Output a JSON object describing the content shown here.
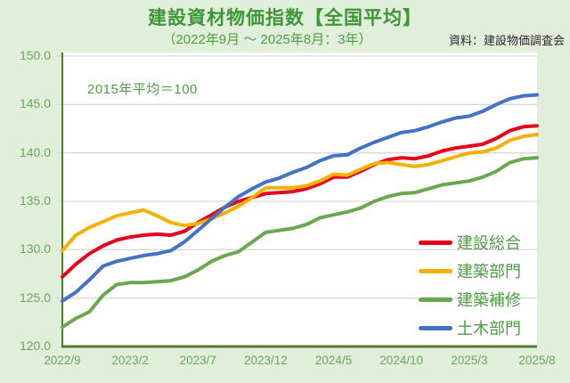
{
  "header": {
    "title": "建設資材物価指数【全国平均】",
    "subtitle": "（2022年9月 ～ 2025年8月：3年）",
    "source": "資料：建設物価調査会"
  },
  "chart": {
    "annotation": "2015年平均＝100"
  },
  "chart_data": {
    "type": "line",
    "title": "建設資材物価指数【全国平均】",
    "subtitle": "（2022年9月 ～ 2025年8月：3年）",
    "annotation": "2015年平均＝100",
    "ylim": [
      120,
      150
    ],
    "y_tick_labels": [
      "150.0",
      "145.0",
      "140.0",
      "135.0",
      "130.0",
      "125.0",
      "120.0"
    ],
    "x_tick_labels": [
      "2022/9",
      "2023/2",
      "2023/7",
      "2023/12",
      "2024/5",
      "2024/10",
      "2025/3",
      "2025/8"
    ],
    "grid": true,
    "legend_position": "inside-right-bottom",
    "categories": [
      "2022/9",
      "2022/10",
      "2022/11",
      "2022/12",
      "2023/1",
      "2023/2",
      "2023/3",
      "2023/4",
      "2023/5",
      "2023/6",
      "2023/7",
      "2023/8",
      "2023/9",
      "2023/10",
      "2023/11",
      "2023/12",
      "2024/1",
      "2024/2",
      "2024/3",
      "2024/4",
      "2024/5",
      "2024/6",
      "2024/7",
      "2024/8",
      "2024/9",
      "2024/10",
      "2024/11",
      "2024/12",
      "2025/1",
      "2025/2",
      "2025/3",
      "2025/4",
      "2025/5",
      "2025/6",
      "2025/7",
      "2025/8"
    ],
    "series": [
      {
        "name": "建設総合",
        "color": "#e60019",
        "values": [
          127.2,
          128.5,
          129.6,
          130.4,
          131.0,
          131.3,
          131.5,
          131.6,
          131.5,
          131.9,
          132.8,
          133.6,
          134.4,
          135.0,
          135.4,
          135.8,
          135.9,
          136.0,
          136.3,
          136.8,
          137.5,
          137.5,
          138.1,
          138.8,
          139.3,
          139.5,
          139.4,
          139.7,
          140.2,
          140.5,
          140.7,
          140.9,
          141.5,
          142.3,
          142.7,
          142.8
        ]
      },
      {
        "name": "建築部門",
        "color": "#f5b000",
        "values": [
          129.9,
          131.5,
          132.3,
          132.9,
          133.5,
          133.8,
          134.1,
          133.5,
          132.8,
          132.5,
          132.7,
          133.2,
          133.8,
          134.5,
          135.4,
          136.4,
          136.4,
          136.4,
          136.6,
          137.1,
          137.8,
          137.7,
          138.3,
          138.9,
          139.0,
          138.8,
          138.6,
          138.8,
          139.2,
          139.6,
          140.0,
          140.1,
          140.5,
          141.3,
          141.7,
          141.9
        ]
      },
      {
        "name": "建築補修",
        "color": "#6aa84f",
        "values": [
          122.0,
          122.9,
          123.6,
          125.3,
          126.4,
          126.6,
          126.6,
          126.7,
          126.8,
          127.2,
          127.9,
          128.8,
          129.4,
          129.8,
          130.8,
          131.8,
          132.0,
          132.2,
          132.6,
          133.3,
          133.6,
          133.9,
          134.3,
          135.0,
          135.5,
          135.8,
          135.9,
          136.3,
          136.7,
          136.9,
          137.1,
          137.5,
          138.1,
          139.0,
          139.4,
          139.5
        ]
      },
      {
        "name": "土木部門",
        "color": "#4472c4",
        "values": [
          124.7,
          125.6,
          126.9,
          128.3,
          128.8,
          129.1,
          129.4,
          129.6,
          129.9,
          130.8,
          132.0,
          133.2,
          134.4,
          135.5,
          136.3,
          137.0,
          137.4,
          138.0,
          138.5,
          139.2,
          139.7,
          139.8,
          140.5,
          141.1,
          141.6,
          142.1,
          142.3,
          142.7,
          143.2,
          143.6,
          143.8,
          144.3,
          145.0,
          145.6,
          145.9,
          146.0
        ]
      }
    ],
    "colors": {
      "background": "#e0efda",
      "plot_background": "#ffffff",
      "axis": "#4f7d2f",
      "gridline": "#d9d9d9",
      "title_text": "#3f9636",
      "tick_text": "#6fa463",
      "legend_text": "#4e9c44",
      "source_text": "#2b2b2b"
    }
  }
}
